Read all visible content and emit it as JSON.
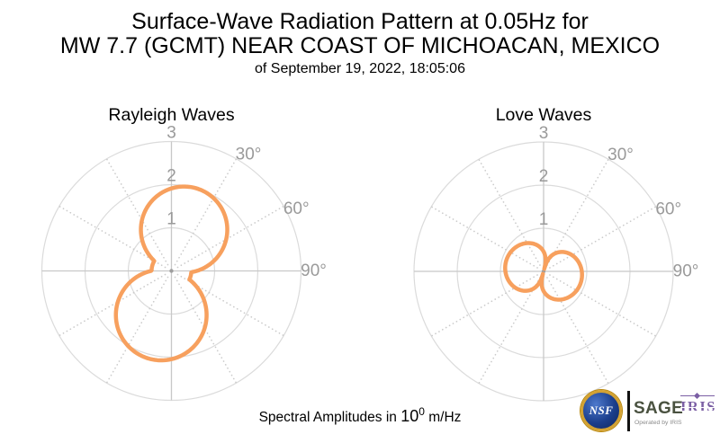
{
  "title": {
    "line1": "Surface-Wave Radiation Pattern at 0.05Hz for",
    "line2": "MW 7.7 (GCMT) NEAR COAST OF MICHOACAN, MEXICO",
    "subtitle": "of September 19, 2022, 18:05:06"
  },
  "footer": {
    "caption_prefix": "Spectral Amplitudes in",
    "caption_base": "10",
    "caption_exponent": "0",
    "caption_suffix": "m/Hz"
  },
  "logos": {
    "nsf_label": "NSF",
    "sage_label": "SAGE",
    "sage_sub": "Operated by IRIS",
    "iris_label": "IRIS"
  },
  "colors": {
    "curve": "#F7A05E",
    "ring": "#DBDBDB",
    "axis_cross": "#C8C8C8",
    "spoke": "#CBCBCB",
    "tick_label": "#9A9A9A",
    "center_dot": "#9E9E9E",
    "title_text": "#000000",
    "sage_green": "#4A5240",
    "iris_purple": "#7B5FA4",
    "nsf_blue": "#1B3E8C",
    "nsf_gold": "#D3A233"
  },
  "chart_data": [
    {
      "type": "polar-line",
      "title": "Rayleigh Waves",
      "units": "10^0 m/Hz",
      "angle_convention": "degrees clockwise from North",
      "radial_ticks": [
        1,
        2,
        3
      ],
      "radial_limit": 3,
      "angle_ticks_deg": [
        30,
        60,
        90
      ],
      "angle_tick_labels": [
        "30°",
        "60°",
        "90°"
      ],
      "grid": {
        "rings": "solid",
        "spokes_every_deg": 30,
        "spokes_style": "dotted"
      },
      "model": {
        "floor": 0.46,
        "lobes": [
          {
            "amp": 2.0,
            "axis_deg": 17,
            "shape": "cos"
          },
          {
            "amp": 2.1,
            "axis_deg": 193,
            "shape": "cos"
          }
        ]
      },
      "samples": {
        "theta_deg": [
          0,
          15,
          30,
          45,
          60,
          75,
          90,
          105,
          120,
          135,
          150,
          165,
          180,
          195,
          210,
          225,
          240,
          255,
          270,
          285,
          300,
          315,
          330,
          345
        ],
        "r": [
          1.91,
          2.0,
          1.95,
          1.77,
          1.46,
          1.06,
          0.58,
          0.46,
          0.61,
          1.11,
          1.54,
          1.85,
          2.05,
          2.1,
          2.01,
          1.78,
          1.43,
          0.99,
          0.47,
          0.46,
          0.46,
          0.94,
          1.36,
          1.7
        ]
      }
    },
    {
      "type": "polar-line",
      "title": "Love Waves",
      "units": "10^0 m/Hz",
      "angle_convention": "degrees clockwise from North",
      "radial_ticks": [
        1,
        2,
        3
      ],
      "radial_limit": 3,
      "angle_ticks_deg": [
        30,
        60,
        90
      ],
      "angle_tick_labels": [
        "30°",
        "60°",
        "90°"
      ],
      "grid": {
        "rings": "solid",
        "spokes_every_deg": 30,
        "spokes_style": "dotted"
      },
      "model": {
        "floor": 0.06,
        "lobes": [
          {
            "amp": 0.9,
            "axis_deg": 105,
            "shape": "sqrt-cos"
          },
          {
            "amp": 0.9,
            "axis_deg": 285,
            "shape": "sqrt-cos"
          }
        ]
      },
      "samples": {
        "theta_deg": [
          0,
          15,
          30,
          45,
          60,
          75,
          90,
          105,
          120,
          135,
          150,
          165,
          180,
          195,
          210,
          225,
          240,
          255,
          270,
          285,
          300,
          315,
          330,
          345
        ],
        "r": [
          0.46,
          0.06,
          0.46,
          0.64,
          0.76,
          0.84,
          0.88,
          0.9,
          0.88,
          0.84,
          0.76,
          0.64,
          0.46,
          0.06,
          0.46,
          0.64,
          0.76,
          0.84,
          0.88,
          0.9,
          0.88,
          0.84,
          0.76,
          0.64
        ]
      }
    }
  ]
}
